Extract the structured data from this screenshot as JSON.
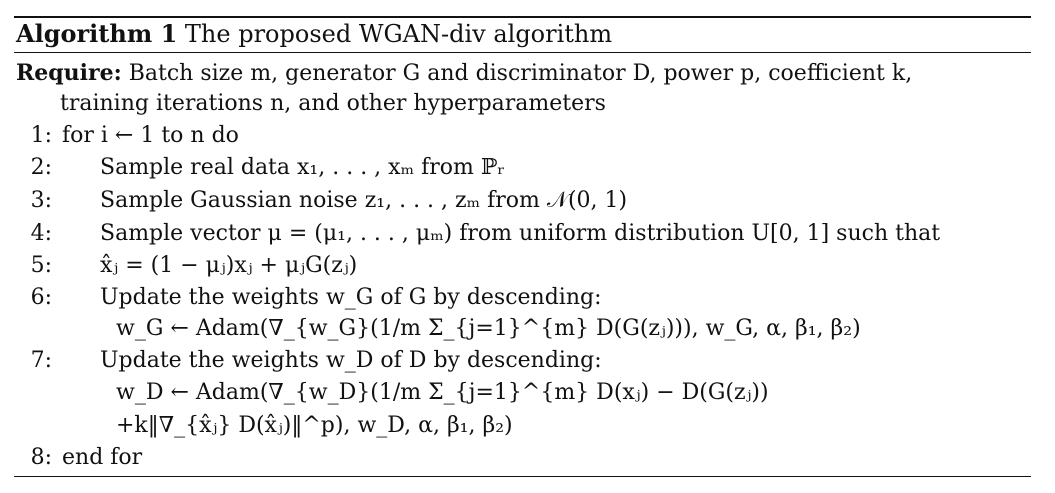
{
  "title": {
    "label": "Algorithm 1",
    "text": "The proposed WGAN-div algorithm"
  },
  "require": {
    "label": "Require:",
    "line1": "Batch size m, generator G and discriminator D, power p, coefficient k,",
    "line2": "training iterations n, and other hyperparameters"
  },
  "steps": [
    {
      "num": "1:",
      "text": "for i ← 1 to n do"
    },
    {
      "num": "2:",
      "text": "Sample real data x₁, . . . , xₘ from ℙᵣ"
    },
    {
      "num": "3:",
      "text": "Sample Gaussian noise z₁, . . . , zₘ from 𝒩(0, 1)"
    },
    {
      "num": "4:",
      "text": "Sample vector μ = (μ₁, . . . , μₘ) from uniform distribution U[0, 1] such that"
    },
    {
      "num": "5:",
      "text": "x̂ⱼ = (1 − μⱼ)xⱼ + μⱼG(zⱼ)"
    },
    {
      "num": "6:",
      "text": "Update the weights w_G of G by descending:"
    },
    {
      "num": "",
      "text": "w_G ← Adam(∇_{w_G}(1/m Σ_{j=1}^{m} D(G(zⱼ))), w_G, α, β₁, β₂)"
    },
    {
      "num": "7:",
      "text": "Update the weights w_D of D by descending:"
    },
    {
      "num": "",
      "text": "w_D ← Adam(∇_{w_D}(1/m Σ_{j=1}^{m} D(xⱼ) − D(G(zⱼ))"
    },
    {
      "num": "",
      "text": "+k‖∇_{x̂ⱼ} D(x̂ⱼ)‖^p), w_D, α, β₁, β₂)"
    },
    {
      "num": "8:",
      "text": "end for"
    }
  ]
}
